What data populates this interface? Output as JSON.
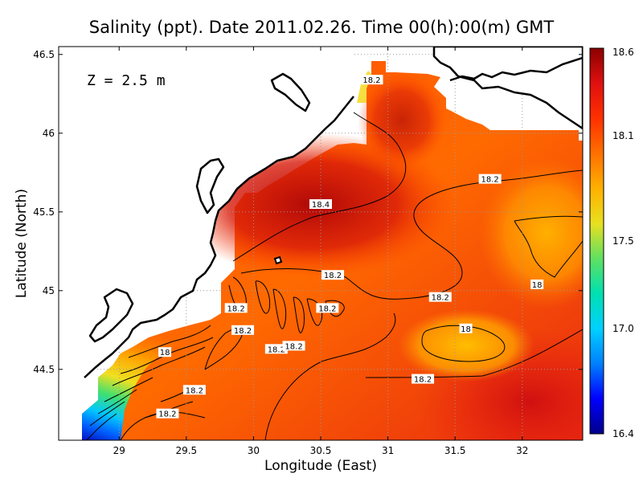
{
  "chart_data": {
    "type": "heatmap",
    "title": "Salinity (ppt). Date 2011.02.26. Time 00(h):00(m) GMT",
    "annotation": "Z = 2.5 m",
    "xlabel": "Longitude (East)",
    "ylabel": "Latitude (North)",
    "xlim": [
      28.55,
      32.45
    ],
    "ylim": [
      44.05,
      46.55
    ],
    "xticks": [
      29,
      29.5,
      30,
      30.5,
      31,
      31.5,
      32
    ],
    "xtick_labels": [
      "29",
      "29.5",
      "30",
      "30.5",
      "31",
      "31.5",
      "32"
    ],
    "yticks": [
      44.5,
      45,
      45.5,
      46,
      46.5
    ],
    "ytick_labels": [
      "44.5",
      "45",
      "45.5",
      "46",
      "46.5"
    ],
    "grid": true,
    "colorbar": {
      "range": [
        16.4,
        18.6
      ],
      "ticks": [
        16.4,
        17.0,
        17.5,
        18.1,
        18.6
      ],
      "tick_labels": [
        "16.4",
        "17.0",
        "17.5",
        "18.1",
        "18.6"
      ],
      "colors": [
        "#00008b",
        "#0000ff",
        "#0080ff",
        "#00d0ff",
        "#00e0b0",
        "#60e060",
        "#e8e020",
        "#ffb000",
        "#ff7000",
        "#ff3000",
        "#e01010",
        "#8b0000"
      ]
    },
    "contour_labels": [
      {
        "text": "18.2",
        "lon": 30.88,
        "lat": 46.34
      },
      {
        "text": "18.2",
        "lon": 31.76,
        "lat": 45.71
      },
      {
        "text": "18.4",
        "lon": 30.5,
        "lat": 45.55
      },
      {
        "text": "18.2",
        "lon": 30.59,
        "lat": 45.1
      },
      {
        "text": "18.2",
        "lon": 31.39,
        "lat": 44.96
      },
      {
        "text": "18",
        "lon": 32.11,
        "lat": 45.04
      },
      {
        "text": "18",
        "lon": 31.58,
        "lat": 44.76
      },
      {
        "text": "18.2",
        "lon": 29.87,
        "lat": 44.89
      },
      {
        "text": "18.2",
        "lon": 30.55,
        "lat": 44.89
      },
      {
        "text": "18.2",
        "lon": 29.92,
        "lat": 44.75
      },
      {
        "text": "18.2",
        "lon": 30.17,
        "lat": 44.63
      },
      {
        "text": "18.2",
        "lon": 30.3,
        "lat": 44.65
      },
      {
        "text": "18",
        "lon": 29.34,
        "lat": 44.61
      },
      {
        "text": "18.2",
        "lon": 31.26,
        "lat": 44.44
      },
      {
        "text": "18.2",
        "lon": 29.56,
        "lat": 44.37
      },
      {
        "text": "18.2",
        "lon": 29.36,
        "lat": 44.22
      }
    ]
  }
}
